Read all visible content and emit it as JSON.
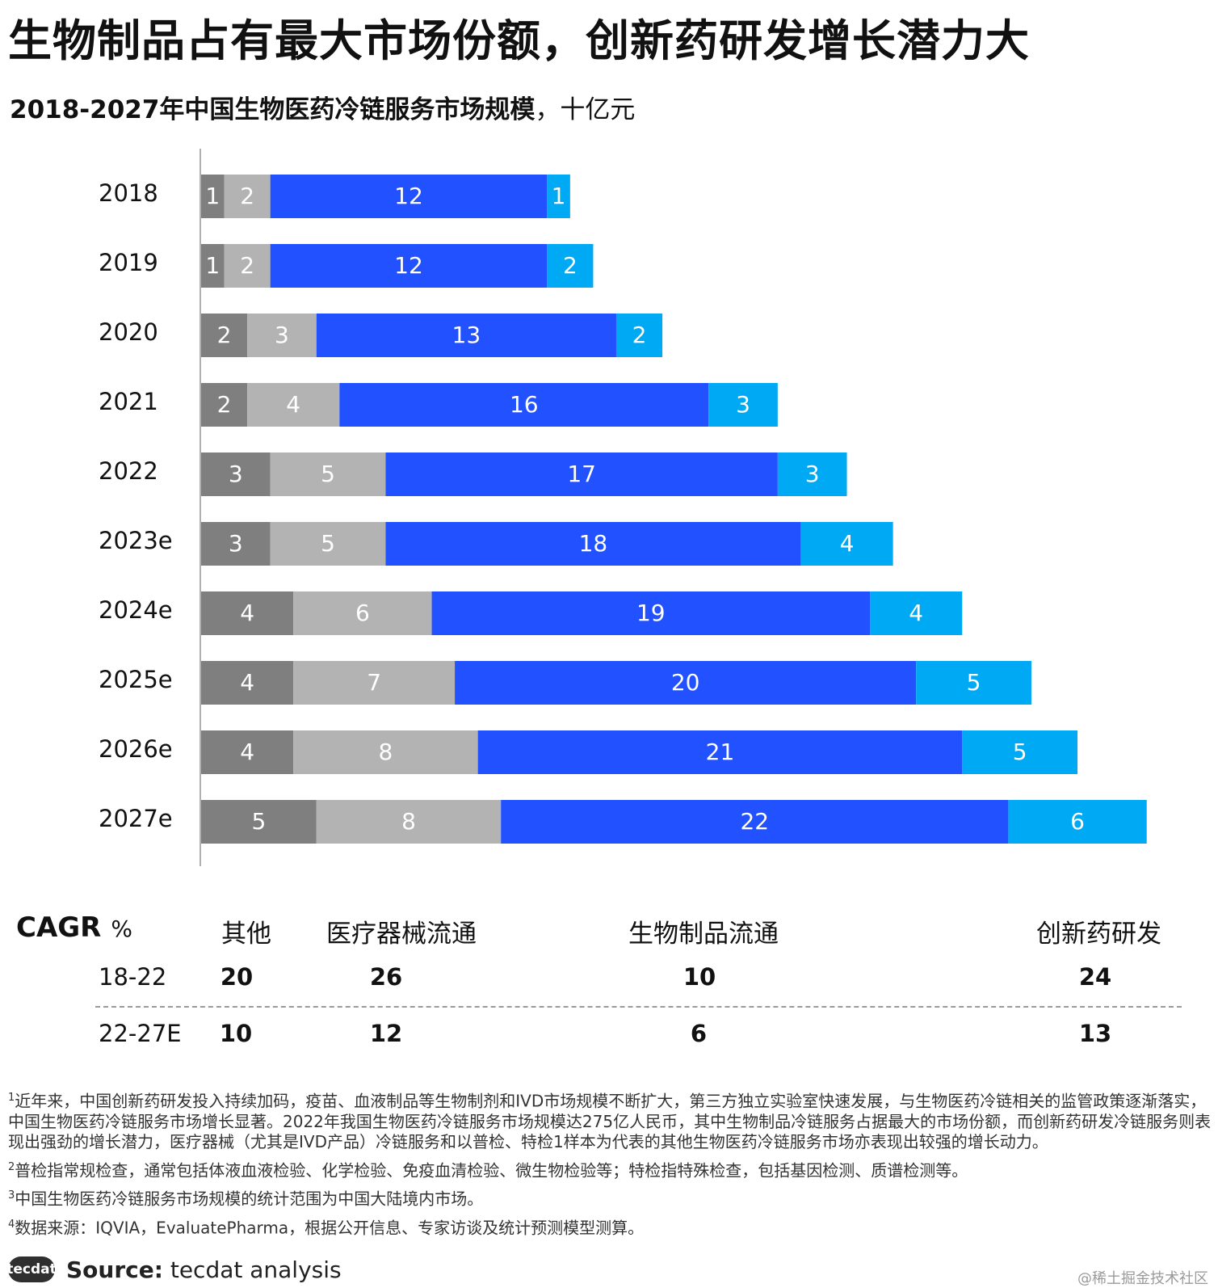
{
  "title": "生物制品占有最大市场份额，创新药研发增长潜力大",
  "subtitle_bold": "2018-2027年中国生物医药冷链服务市场规模",
  "subtitle_unit": "，十亿元",
  "colors": {
    "other": "#7f7f7f",
    "device": "#b3b3b3",
    "bio": "#2251ff",
    "innovative": "#00a9f4"
  },
  "chart_data": {
    "type": "bar",
    "orientation": "horizontal",
    "stacked": true,
    "title": "2018-2027年中国生物医药冷链服务市场规模，十亿元",
    "categories": [
      "2018",
      "2019",
      "2020",
      "2021",
      "2022",
      "2023e",
      "2024e",
      "2025e",
      "2026e",
      "2027e"
    ],
    "series": [
      {
        "name": "其他",
        "values": [
          1,
          1,
          2,
          2,
          3,
          3,
          4,
          4,
          4,
          5
        ]
      },
      {
        "name": "医疗器械流通",
        "values": [
          2,
          2,
          3,
          4,
          5,
          5,
          6,
          7,
          8,
          8
        ]
      },
      {
        "name": "生物制品流通",
        "values": [
          12,
          12,
          13,
          16,
          17,
          18,
          19,
          20,
          21,
          22
        ]
      },
      {
        "name": "创新药研发",
        "values": [
          1,
          2,
          2,
          3,
          3,
          4,
          4,
          5,
          5,
          6
        ]
      }
    ],
    "xlim": [
      0,
      41.5
    ]
  },
  "cagr": {
    "label": "CAGR",
    "unit": "%",
    "headers": [
      "其他",
      "医疗器械流通",
      "生物制品流通",
      "创新药研发"
    ],
    "rows": [
      {
        "period": "18-22",
        "values": [
          "20",
          "26",
          "10",
          "24"
        ]
      },
      {
        "period": "22-27E",
        "values": [
          "10",
          "12",
          "6",
          "13"
        ]
      }
    ]
  },
  "notes": [
    {
      "num": "1",
      "text": "近年来，中国创新药研发投入持续加码，疫苗、血液制品等生物制剂和IVD市场规模不断扩大，第三方独立实验室快速发展，与生物医药冷链相关的监管政策逐渐落实，中国生物医药冷链服务市场增长显著。2022年我国生物医药冷链服务市场规模达275亿人民币，其中生物制品冷链服务占据最大的市场份额，而创新药研发冷链服务则表现出强劲的增长潜力，医疗器械（尤其是IVD产品）冷链服务和以普检、特检1样本为代表的其他生物医药冷链服务市场亦表现出较强的增长动力。"
    },
    {
      "num": "2",
      "text": "普检指常规检查，通常包括体液血液检验、化学检验、免疫血清检验、微生物检验等；特检指特殊检查，包括基因检测、质谱检测等。"
    },
    {
      "num": "3",
      "text": "中国生物医药冷链服务市场规模的统计范围为中国大陆境内市场。"
    },
    {
      "num": "4",
      "text": "数据来源：IQVIA，EvaluatePharma，根据公开信息、专家访谈及统计预测模型测算。"
    }
  ],
  "footer": {
    "logo": "tecdat",
    "source_label": "Source:",
    "source_text": " tecdat analysis"
  },
  "watermark": "@稀土掘金技术社区"
}
